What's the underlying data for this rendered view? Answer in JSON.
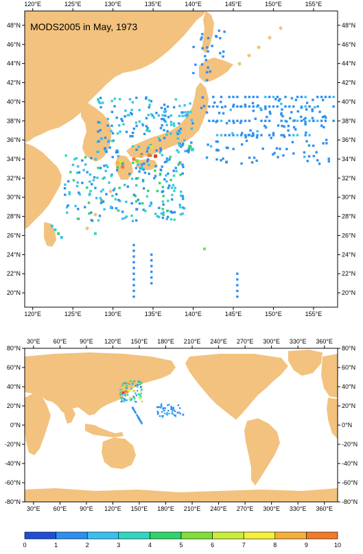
{
  "title": "MODS2005 in May, 1973",
  "land_color": "#f2c27e",
  "frame_color": "#000000",
  "upper_map": {
    "lon_range": [
      119,
      158
    ],
    "lat_range": [
      18.5,
      49.5
    ],
    "lon_ticks": [
      "120°E",
      "125°E",
      "130°E",
      "135°E",
      "140°E",
      "145°E",
      "150°E",
      "155°E"
    ],
    "lon_values": [
      120,
      125,
      130,
      135,
      140,
      145,
      150,
      155
    ],
    "lat_ticks": [
      "48°N",
      "46°N",
      "44°N",
      "42°N",
      "40°N",
      "38°N",
      "36°N",
      "34°N",
      "32°N",
      "30°N",
      "28°N",
      "26°N",
      "24°N",
      "22°N",
      "20°N"
    ],
    "lat_values": [
      48,
      46,
      44,
      42,
      40,
      38,
      36,
      34,
      32,
      30,
      28,
      26,
      24,
      22,
      20
    ]
  },
  "lower_map": {
    "lon_range": [
      20,
      375
    ],
    "lat_range": [
      -80,
      80
    ],
    "lon_ticks": [
      "30°E",
      "60°E",
      "90°E",
      "120°E",
      "150°E",
      "180°E",
      "210°E",
      "240°E",
      "270°E",
      "300°E",
      "330°E",
      "360°E"
    ],
    "lon_values": [
      30,
      60,
      90,
      120,
      150,
      180,
      210,
      240,
      270,
      300,
      330,
      360
    ],
    "lat_ticks": [
      "80°N",
      "60°N",
      "40°N",
      "20°N",
      "0°N",
      "-20°N",
      "-40°N",
      "-60°N",
      "-80°N"
    ],
    "lat_values": [
      80,
      60,
      40,
      20,
      0,
      -20,
      -40,
      -60,
      -80
    ]
  },
  "colorbar": {
    "labels": [
      "0",
      "1",
      "2",
      "3",
      "4",
      "5",
      "6",
      "7",
      "8",
      "9",
      "10"
    ],
    "colors": [
      "#1f4fd6",
      "#2f8ff0",
      "#39c0f0",
      "#32d6c0",
      "#2fd36a",
      "#7fe03a",
      "#c8ee3a",
      "#f5f03a",
      "#f5b03a",
      "#f07a2a",
      "#e03a1a"
    ]
  }
}
